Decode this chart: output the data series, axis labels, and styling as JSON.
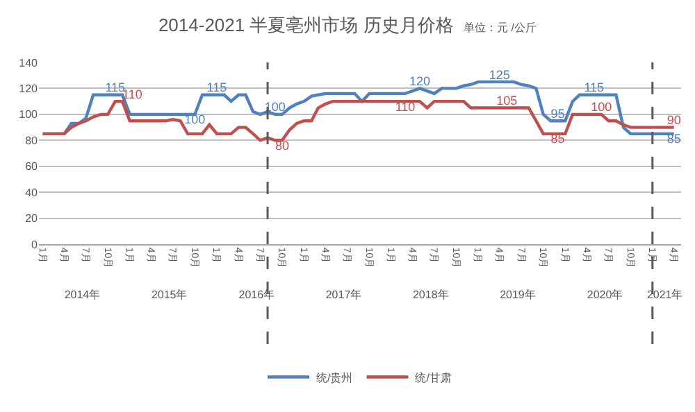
{
  "chart_data": {
    "type": "line",
    "title": "2014-2021 半夏亳州市场 历史月价格",
    "subtitle": "单位：元 /公斤",
    "x": [
      "2014-01",
      "2014-02",
      "2014-03",
      "2014-04",
      "2014-05",
      "2014-06",
      "2014-07",
      "2014-08",
      "2014-09",
      "2014-10",
      "2014-11",
      "2014-12",
      "2015-01",
      "2015-02",
      "2015-03",
      "2015-04",
      "2015-05",
      "2015-06",
      "2015-07",
      "2015-08",
      "2015-09",
      "2015-10",
      "2015-11",
      "2015-12",
      "2016-01",
      "2016-02",
      "2016-03",
      "2016-04",
      "2016-05",
      "2016-06",
      "2016-07",
      "2016-08",
      "2016-09",
      "2016-10",
      "2016-11",
      "2016-12",
      "2017-01",
      "2017-02",
      "2017-03",
      "2017-04",
      "2017-05",
      "2017-06",
      "2017-07",
      "2017-08",
      "2017-09",
      "2017-10",
      "2017-11",
      "2017-12",
      "2018-01",
      "2018-02",
      "2018-03",
      "2018-04",
      "2018-05",
      "2018-06",
      "2018-07",
      "2018-08",
      "2018-09",
      "2018-10",
      "2018-11",
      "2018-12",
      "2019-01",
      "2019-02",
      "2019-03",
      "2019-04",
      "2019-05",
      "2019-06",
      "2019-07",
      "2019-08",
      "2019-09",
      "2019-10",
      "2019-11",
      "2019-12",
      "2020-01",
      "2020-02",
      "2020-03",
      "2020-04",
      "2020-05",
      "2020-06",
      "2020-07",
      "2020-08",
      "2020-09",
      "2020-10",
      "2020-11",
      "2020-12",
      "2021-01",
      "2021-02",
      "2021-03",
      "2021-04"
    ],
    "series": [
      {
        "name": "统/贵州",
        "color": "#4f81bd",
        "values": [
          85,
          85,
          85,
          85,
          93,
          93,
          97,
          115,
          115,
          115,
          115,
          115,
          100,
          100,
          100,
          100,
          100,
          100,
          100,
          100,
          100,
          100,
          115,
          115,
          115,
          115,
          110,
          115,
          115,
          102,
          100,
          102,
          100,
          100,
          105,
          108,
          110,
          114,
          115,
          116,
          116,
          116,
          116,
          116,
          110,
          116,
          116,
          116,
          116,
          116,
          116,
          118,
          120,
          118,
          116,
          120,
          120,
          120,
          122,
          123,
          125,
          125,
          125,
          125,
          125,
          125,
          123,
          122,
          120,
          100,
          95,
          95,
          95,
          110,
          115,
          115,
          115,
          115,
          115,
          115,
          90,
          85,
          85,
          85,
          85,
          85,
          85,
          85
        ],
        "value_labels": [
          null,
          null,
          null,
          null,
          null,
          null,
          null,
          null,
          null,
          null,
          "115",
          null,
          null,
          null,
          null,
          null,
          null,
          null,
          null,
          null,
          null,
          "100",
          null,
          null,
          "115",
          null,
          null,
          null,
          null,
          null,
          null,
          null,
          "100",
          null,
          null,
          null,
          null,
          null,
          null,
          null,
          null,
          null,
          null,
          null,
          null,
          null,
          null,
          null,
          null,
          null,
          null,
          null,
          "120",
          null,
          null,
          null,
          null,
          null,
          null,
          null,
          null,
          null,
          null,
          "125",
          null,
          null,
          null,
          null,
          null,
          null,
          null,
          "95",
          null,
          null,
          null,
          null,
          "115",
          null,
          null,
          null,
          null,
          null,
          null,
          null,
          null,
          null,
          null,
          "85"
        ]
      },
      {
        "name": "统/甘肃",
        "color": "#c0504d",
        "values": [
          85,
          85,
          85,
          85,
          90,
          93,
          95,
          98,
          100,
          100,
          110,
          110,
          95,
          95,
          95,
          95,
          95,
          95,
          96,
          95,
          85,
          85,
          85,
          92,
          85,
          85,
          85,
          90,
          90,
          85,
          80,
          82,
          80,
          80,
          88,
          93,
          95,
          95,
          105,
          108,
          110,
          110,
          110,
          110,
          110,
          110,
          110,
          110,
          110,
          110,
          110,
          110,
          110,
          105,
          110,
          110,
          110,
          110,
          110,
          105,
          105,
          105,
          105,
          105,
          105,
          105,
          105,
          105,
          95,
          85,
          85,
          85,
          85,
          100,
          100,
          100,
          100,
          100,
          95,
          95,
          92,
          90,
          90,
          90,
          90,
          90,
          90,
          90
        ],
        "value_labels": [
          null,
          null,
          null,
          null,
          null,
          null,
          null,
          null,
          null,
          null,
          null,
          "110",
          null,
          null,
          null,
          null,
          null,
          null,
          null,
          null,
          null,
          null,
          null,
          null,
          null,
          null,
          null,
          null,
          null,
          null,
          null,
          null,
          null,
          "80",
          null,
          null,
          null,
          null,
          null,
          null,
          null,
          null,
          null,
          null,
          null,
          null,
          null,
          null,
          null,
          null,
          "110",
          null,
          null,
          null,
          null,
          null,
          null,
          null,
          null,
          null,
          null,
          null,
          null,
          null,
          "105",
          null,
          null,
          null,
          null,
          null,
          null,
          "85",
          null,
          null,
          null,
          null,
          null,
          "100",
          null,
          null,
          null,
          null,
          null,
          null,
          null,
          null,
          null,
          "90"
        ]
      }
    ],
    "ylim": [
      0,
      140
    ],
    "yticks": [
      0,
      20,
      40,
      60,
      80,
      100,
      120,
      140
    ],
    "xlim": [
      "2013-12-16",
      "2021-05-01"
    ],
    "xticks": [
      {
        "value": "2014-01",
        "label": "1月"
      },
      {
        "value": "2014-04",
        "label": "4月"
      },
      {
        "value": "2014-07",
        "label": "7月"
      },
      {
        "value": "2014-10",
        "label": "10月"
      },
      {
        "value": "2015-01",
        "label": "1月"
      },
      {
        "value": "2015-04",
        "label": "4月"
      },
      {
        "value": "2015-07",
        "label": "7月"
      },
      {
        "value": "2015-10",
        "label": "10月"
      },
      {
        "value": "2016-01",
        "label": "1月"
      },
      {
        "value": "2016-04",
        "label": "4月"
      },
      {
        "value": "2016-07",
        "label": "7月"
      },
      {
        "value": "2016-10",
        "label": "10月"
      },
      {
        "value": "2017-01",
        "label": "1月"
      },
      {
        "value": "2017-04",
        "label": "4月"
      },
      {
        "value": "2017-07",
        "label": "7月"
      },
      {
        "value": "2017-10",
        "label": "10月"
      },
      {
        "value": "2018-01",
        "label": "1月"
      },
      {
        "value": "2018-04",
        "label": "4月"
      },
      {
        "value": "2018-07",
        "label": "7月"
      },
      {
        "value": "2018-10",
        "label": "10月"
      },
      {
        "value": "2019-01",
        "label": "1月"
      },
      {
        "value": "2019-04",
        "label": "4月"
      },
      {
        "value": "2019-07",
        "label": "7月"
      },
      {
        "value": "2019-10",
        "label": "10月"
      },
      {
        "value": "2020-01",
        "label": "1月"
      },
      {
        "value": "2020-04",
        "label": "4月"
      },
      {
        "value": "2020-07",
        "label": "7月"
      },
      {
        "value": "2020-10",
        "label": "10月"
      },
      {
        "value": "2021-01",
        "label": "1月"
      },
      {
        "value": "2021-04",
        "label": "4月"
      }
    ],
    "x2lim": [
      "2013-12-16",
      "2021-05-01"
    ],
    "x2ticks": [
      {
        "value": "2014-06-16",
        "label": "2014年"
      },
      {
        "value": "2015-06-16",
        "label": "2015年"
      },
      {
        "value": "2016-06-16",
        "label": "2016年"
      },
      {
        "value": "2017-06-16",
        "label": "2017年"
      },
      {
        "value": "2018-06-16",
        "label": "2018年"
      },
      {
        "value": "2019-06-16",
        "label": "2019年"
      },
      {
        "value": "2020-06-16",
        "label": "2020年"
      },
      {
        "value": "2021-02-22",
        "label": "2021年"
      }
    ],
    "ref_lines": [
      {
        "axis": "x",
        "value": "2016-08",
        "color": "#595959",
        "line_style": "dashed"
      },
      {
        "axis": "x",
        "value": "2021-01",
        "color": "#595959",
        "line_style": "dashed"
      }
    ],
    "grid": "y",
    "legend": "bottom",
    "marker": "none",
    "line_style": "solid"
  }
}
